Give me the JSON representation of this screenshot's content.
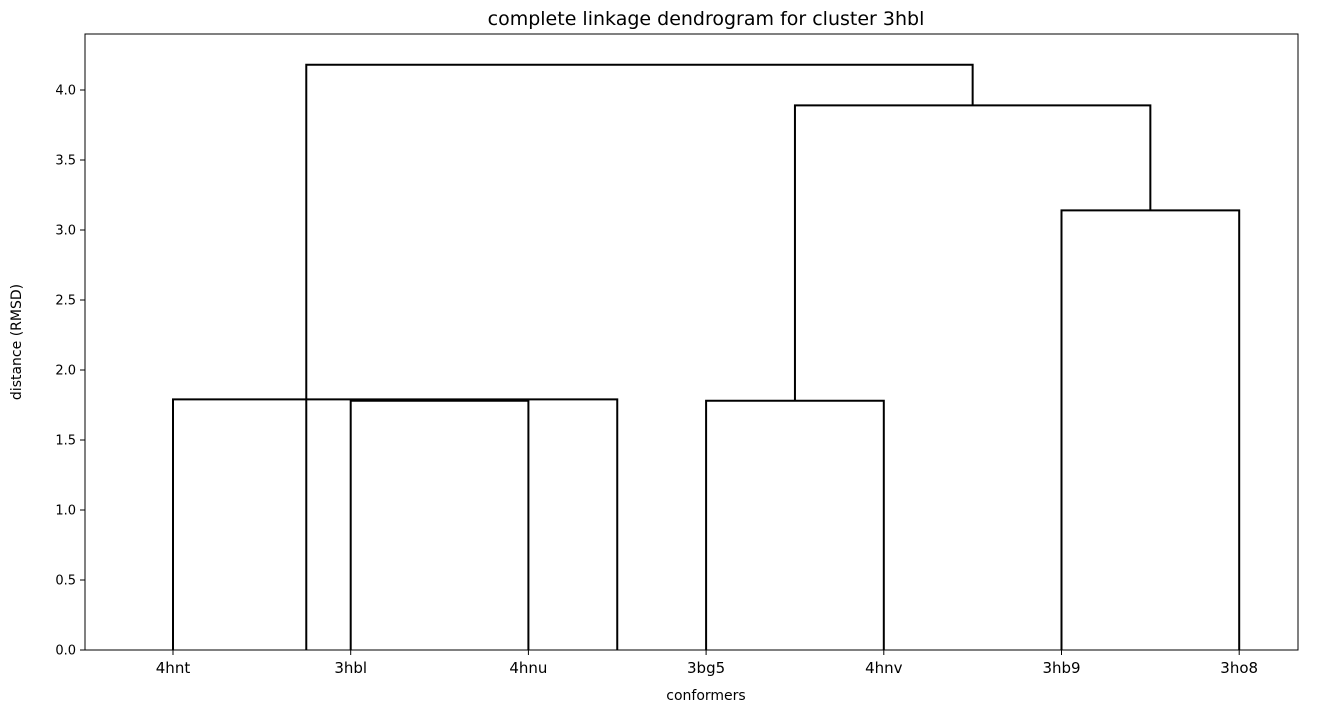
{
  "chart_data": {
    "type": "dendrogram",
    "title": "complete linkage dendrogram for cluster 3hbl",
    "xlabel": "conformers",
    "ylabel": "distance (RMSD)",
    "ylim": [
      0,
      4.4
    ],
    "yticks": [
      "0.0",
      "0.5",
      "1.0",
      "1.5",
      "2.0",
      "2.5",
      "3.0",
      "3.5",
      "4.0"
    ],
    "leaves": [
      "4hnt",
      "3hbl",
      "4hnu",
      "3bg5",
      "4hnv",
      "3hb9",
      "3ho8"
    ],
    "links": [
      {
        "left": 1,
        "right": 2,
        "height": 1.78
      },
      {
        "left": 0,
        "right": 2.5,
        "height": 1.79
      },
      {
        "left": 3,
        "right": 4,
        "height": 1.78
      },
      {
        "left": 5,
        "right": 6,
        "height": 3.14
      },
      {
        "left": 3.5,
        "right": 5.5,
        "height": 3.89
      },
      {
        "left": 0.75,
        "right": 4.5,
        "height": 4.18
      }
    ],
    "grid": false,
    "legend": "none"
  }
}
